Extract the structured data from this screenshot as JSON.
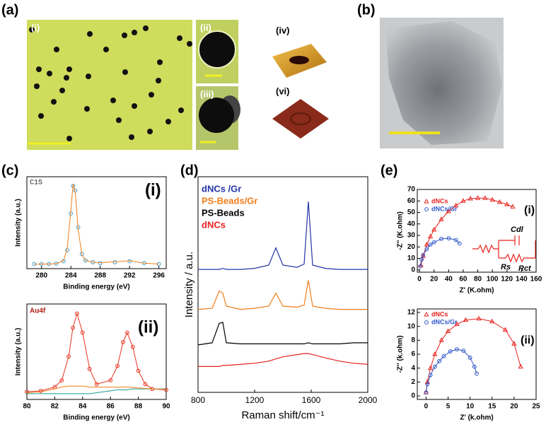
{
  "panels": {
    "a": {
      "label": "(a)",
      "insets": [
        "(i)",
        "(ii)",
        "(iii)",
        "(iv)",
        "(vi)"
      ]
    },
    "b": {
      "label": "(b)"
    },
    "c": {
      "label": "(c)"
    },
    "d": {
      "label": "(d)"
    },
    "e": {
      "label": "(e)"
    }
  },
  "chart_data": [
    {
      "type": "line",
      "annotations": [
        "C1S",
        "(i)"
      ],
      "xlabel": "Binding energy (eV)",
      "ylabel": "Intensity (a.u.)",
      "xlim": [
        278,
        297
      ],
      "xticks": [
        280,
        284,
        288,
        292,
        296
      ],
      "ylim": [
        0,
        10
      ],
      "x": [
        279,
        280,
        281,
        282,
        283,
        283.5,
        284,
        284.3,
        284.6,
        285,
        285.5,
        286,
        287,
        288,
        290,
        292,
        294,
        296
      ],
      "series": [
        {
          "color": "#3a9fd0",
          "marker": "circle",
          "line": false,
          "values": [
            0.5,
            0.5,
            0.5,
            0.55,
            0.8,
            2,
            6,
            9,
            8.5,
            4.5,
            1.6,
            0.9,
            0.7,
            0.6,
            0.7,
            0.8,
            0.6,
            0.5
          ]
        },
        {
          "color": "#f07d1a",
          "marker": "none",
          "line": true,
          "values": [
            0.5,
            0.5,
            0.5,
            0.55,
            0.85,
            2.2,
            6.3,
            9.2,
            8.3,
            4.2,
            1.5,
            0.9,
            0.7,
            0.65,
            0.75,
            0.85,
            0.6,
            0.5
          ]
        }
      ]
    },
    {
      "type": "line",
      "annotations": [
        "Au4f",
        "(ii)"
      ],
      "xlabel": "Binding energy (eV)",
      "ylabel": "Intensity (a.u.)",
      "xlim": [
        80,
        90
      ],
      "xticks": [
        80,
        82,
        84,
        86,
        88,
        90
      ],
      "ylim": [
        0,
        10
      ],
      "x": [
        80,
        81,
        82,
        82.5,
        83,
        83.3,
        83.6,
        84,
        84.5,
        85,
        86,
        86.5,
        86.9,
        87.2,
        87.6,
        88,
        88.5,
        89,
        90
      ],
      "series": [
        {
          "color": "#e8321e",
          "marker": "circle",
          "line": true,
          "values": [
            0.8,
            0.9,
            1.3,
            2,
            4.5,
            7.5,
            9,
            7,
            3.2,
            1.6,
            2,
            3.5,
            6,
            7,
            5.5,
            3,
            1.6,
            1.1,
            1
          ]
        },
        {
          "color": "#1a9e8f",
          "marker": "none",
          "line": true,
          "values": [
            0.6,
            0.6,
            0.6,
            0.6,
            0.6,
            0.6,
            0.6,
            0.6,
            0.6,
            0.7,
            0.9,
            1,
            1,
            1,
            1.1,
            1.1,
            1.1,
            1.1,
            1.1
          ]
        },
        {
          "color": "#f07d1a",
          "marker": "none",
          "line": true,
          "values": [
            0.7,
            0.8,
            1.1,
            1.3,
            1.4,
            1.4,
            1.4,
            1.4,
            1.3,
            1.3,
            1.3,
            1.3,
            1.3,
            1.3,
            1.25,
            1.2,
            1.15,
            1.1,
            1.05
          ]
        }
      ]
    },
    {
      "type": "line",
      "xlabel": "Raman shift/cm⁻¹",
      "ylabel": "Intensity / a.u.",
      "xlim": [
        800,
        2000
      ],
      "xticks": [
        800,
        1200,
        1600,
        2000
      ],
      "ylim": [
        0,
        10
      ],
      "x": [
        800,
        900,
        950,
        975,
        1000,
        1100,
        1200,
        1300,
        1350,
        1400,
        1500,
        1550,
        1580,
        1610,
        1700,
        1800,
        1900,
        2000
      ],
      "series": [
        {
          "name": "dNCs /Gr",
          "color": "#2234a8",
          "marker": "none",
          "line": true,
          "values": [
            5.7,
            5.7,
            5.7,
            5.75,
            5.7,
            5.7,
            5.75,
            5.9,
            6.7,
            5.9,
            5.8,
            5.95,
            8.85,
            5.9,
            5.75,
            5.7,
            5.7,
            5.7
          ]
        },
        {
          "name": "PS-Beads/Gr",
          "color": "#f07d1a",
          "marker": "none",
          "line": true,
          "values": [
            3.85,
            3.9,
            4.7,
            4.6,
            4,
            3.85,
            3.9,
            4,
            4.6,
            4,
            3.95,
            4.05,
            5.2,
            4,
            3.9,
            3.85,
            3.85,
            3.85
          ]
        },
        {
          "name": "PS-Beads",
          "color": "#000000",
          "marker": "none",
          "line": true,
          "values": [
            2.2,
            2.3,
            3.2,
            3.25,
            2.3,
            2.25,
            2.25,
            2.25,
            2.25,
            2.25,
            2.25,
            2.25,
            2.3,
            2.25,
            2.25,
            2.25,
            2.3,
            2.3
          ]
        },
        {
          "name": "dNCs",
          "color": "#e8211e",
          "marker": "none",
          "line": true,
          "values": [
            1.2,
            1.2,
            1.2,
            1.25,
            1.25,
            1.3,
            1.35,
            1.45,
            1.55,
            1.65,
            1.75,
            1.8,
            1.8,
            1.75,
            1.6,
            1.45,
            1.35,
            1.3
          ]
        }
      ]
    },
    {
      "type": "scatter",
      "annotations": [
        "(i)",
        "Cdl",
        "Rs",
        "Rct"
      ],
      "xlabel": "Z' (K.ohm)",
      "ylabel": "-Z'' (K.ohm)",
      "xlim": [
        -3,
        160
      ],
      "xticks": [
        0,
        20,
        40,
        60,
        80,
        100,
        120,
        140,
        160
      ],
      "ylim": [
        -2,
        70
      ],
      "yticks": [
        0,
        10,
        20,
        30,
        40,
        50,
        60,
        70
      ],
      "series": [
        {
          "name": "dNCs",
          "color": "#e8211e",
          "marker": "triangle",
          "line": true,
          "x": [
            2,
            5,
            10,
            15,
            20,
            30,
            40,
            50,
            60,
            70,
            80,
            90,
            100,
            110,
            120,
            128
          ],
          "values": [
            4,
            12,
            22,
            29,
            35,
            44,
            51,
            56,
            60,
            62,
            62.5,
            62.5,
            61,
            59,
            57,
            55
          ]
        },
        {
          "name": "dNCs/Gr",
          "color": "#2f55c8",
          "marker": "circle",
          "line": true,
          "x": [
            1,
            3,
            5,
            10,
            15,
            20,
            30,
            40,
            50,
            55
          ],
          "values": [
            3,
            9,
            13,
            18,
            22,
            24,
            27,
            27.5,
            26,
            23
          ]
        }
      ]
    },
    {
      "type": "scatter",
      "annotations": [
        "(ii)"
      ],
      "xlabel": "Z' (k.ohm)",
      "ylabel": "-Z'' (k.ohm)",
      "xlim": [
        -2,
        25
      ],
      "xticks": [
        0,
        5,
        10,
        15,
        20,
        25
      ],
      "ylim": [
        -0.5,
        12.5
      ],
      "yticks": [
        0,
        2,
        4,
        6,
        8,
        10,
        12
      ],
      "series": [
        {
          "name": "dNCs",
          "color": "#e8211e",
          "marker": "triangle",
          "line": true,
          "x": [
            0,
            0.3,
            1,
            2,
            3.5,
            5,
            7,
            9,
            12,
            15,
            18,
            20,
            21.5
          ],
          "values": [
            0.5,
            2,
            4,
            6,
            8,
            9.3,
            10.3,
            10.9,
            11.1,
            10.7,
            9.5,
            7.5,
            4.2
          ]
        },
        {
          "name": "dNCs/Gr",
          "color": "#2f55c8",
          "marker": "circle",
          "line": true,
          "x": [
            0,
            0.3,
            1,
            2,
            3,
            4,
            5.5,
            7,
            8.5,
            10,
            11,
            11.5
          ],
          "values": [
            0.5,
            1.7,
            3,
            4.2,
            5,
            5.7,
            6.4,
            6.7,
            6.5,
            5.5,
            4.2,
            3.2
          ]
        }
      ]
    }
  ]
}
